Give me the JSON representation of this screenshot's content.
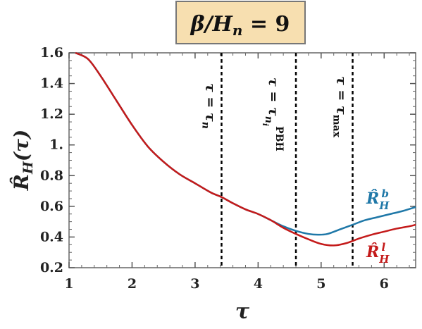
{
  "chart_data": {
    "type": "line",
    "title": "β/Hn = 9",
    "title_box_color": "#f7dfb0",
    "xlabel": "τ",
    "ylabel": "R̂H(τ)",
    "xlim": [
      1,
      6.5
    ],
    "ylim": [
      0.2,
      1.6
    ],
    "xticks": [
      1,
      2,
      3,
      4,
      5,
      6
    ],
    "yticks": [
      0.2,
      0.4,
      0.6,
      0.8,
      1.0,
      1.2,
      1.4,
      1.6
    ],
    "xtick_labels": [
      "1",
      "2",
      "3",
      "4",
      "5",
      "6"
    ],
    "ytick_labels": [
      "0.2",
      "0.4",
      "0.6",
      "0.8",
      "1.",
      "1.2",
      "1.4",
      "1.6"
    ],
    "grid": false,
    "series": [
      {
        "name": "R̂H^b",
        "color": "#1f78a8",
        "x": [
          1.1,
          1.3,
          1.5,
          1.75,
          2.0,
          2.25,
          2.5,
          2.75,
          3.0,
          3.25,
          3.42,
          3.6,
          3.8,
          4.0,
          4.2,
          4.4,
          4.6,
          4.8,
          4.95,
          5.1,
          5.3,
          5.5,
          5.7,
          5.9,
          6.1,
          6.3,
          6.5
        ],
        "y": [
          1.6,
          1.56,
          1.45,
          1.29,
          1.13,
          0.99,
          0.89,
          0.81,
          0.75,
          0.69,
          0.66,
          0.62,
          0.58,
          0.55,
          0.51,
          0.47,
          0.44,
          0.42,
          0.415,
          0.42,
          0.45,
          0.48,
          0.51,
          0.53,
          0.55,
          0.57,
          0.595
        ]
      },
      {
        "name": "R̂H^l",
        "color": "#c41a1a",
        "x": [
          1.1,
          1.3,
          1.5,
          1.75,
          2.0,
          2.25,
          2.5,
          2.75,
          3.0,
          3.25,
          3.42,
          3.6,
          3.8,
          4.0,
          4.2,
          4.4,
          4.6,
          4.8,
          5.0,
          5.2,
          5.4,
          5.6,
          5.8,
          6.0,
          6.2,
          6.4,
          6.5
        ],
        "y": [
          1.6,
          1.56,
          1.45,
          1.29,
          1.13,
          0.99,
          0.89,
          0.81,
          0.75,
          0.69,
          0.66,
          0.62,
          0.58,
          0.55,
          0.51,
          0.46,
          0.42,
          0.385,
          0.355,
          0.345,
          0.36,
          0.39,
          0.415,
          0.435,
          0.455,
          0.47,
          0.48
        ]
      }
    ],
    "vlines": [
      {
        "x": 3.42,
        "label": "τ = τn"
      },
      {
        "x": 4.6,
        "label": "τ = τni PBH"
      },
      {
        "x": 5.5,
        "label": "τ = τmax"
      }
    ]
  }
}
